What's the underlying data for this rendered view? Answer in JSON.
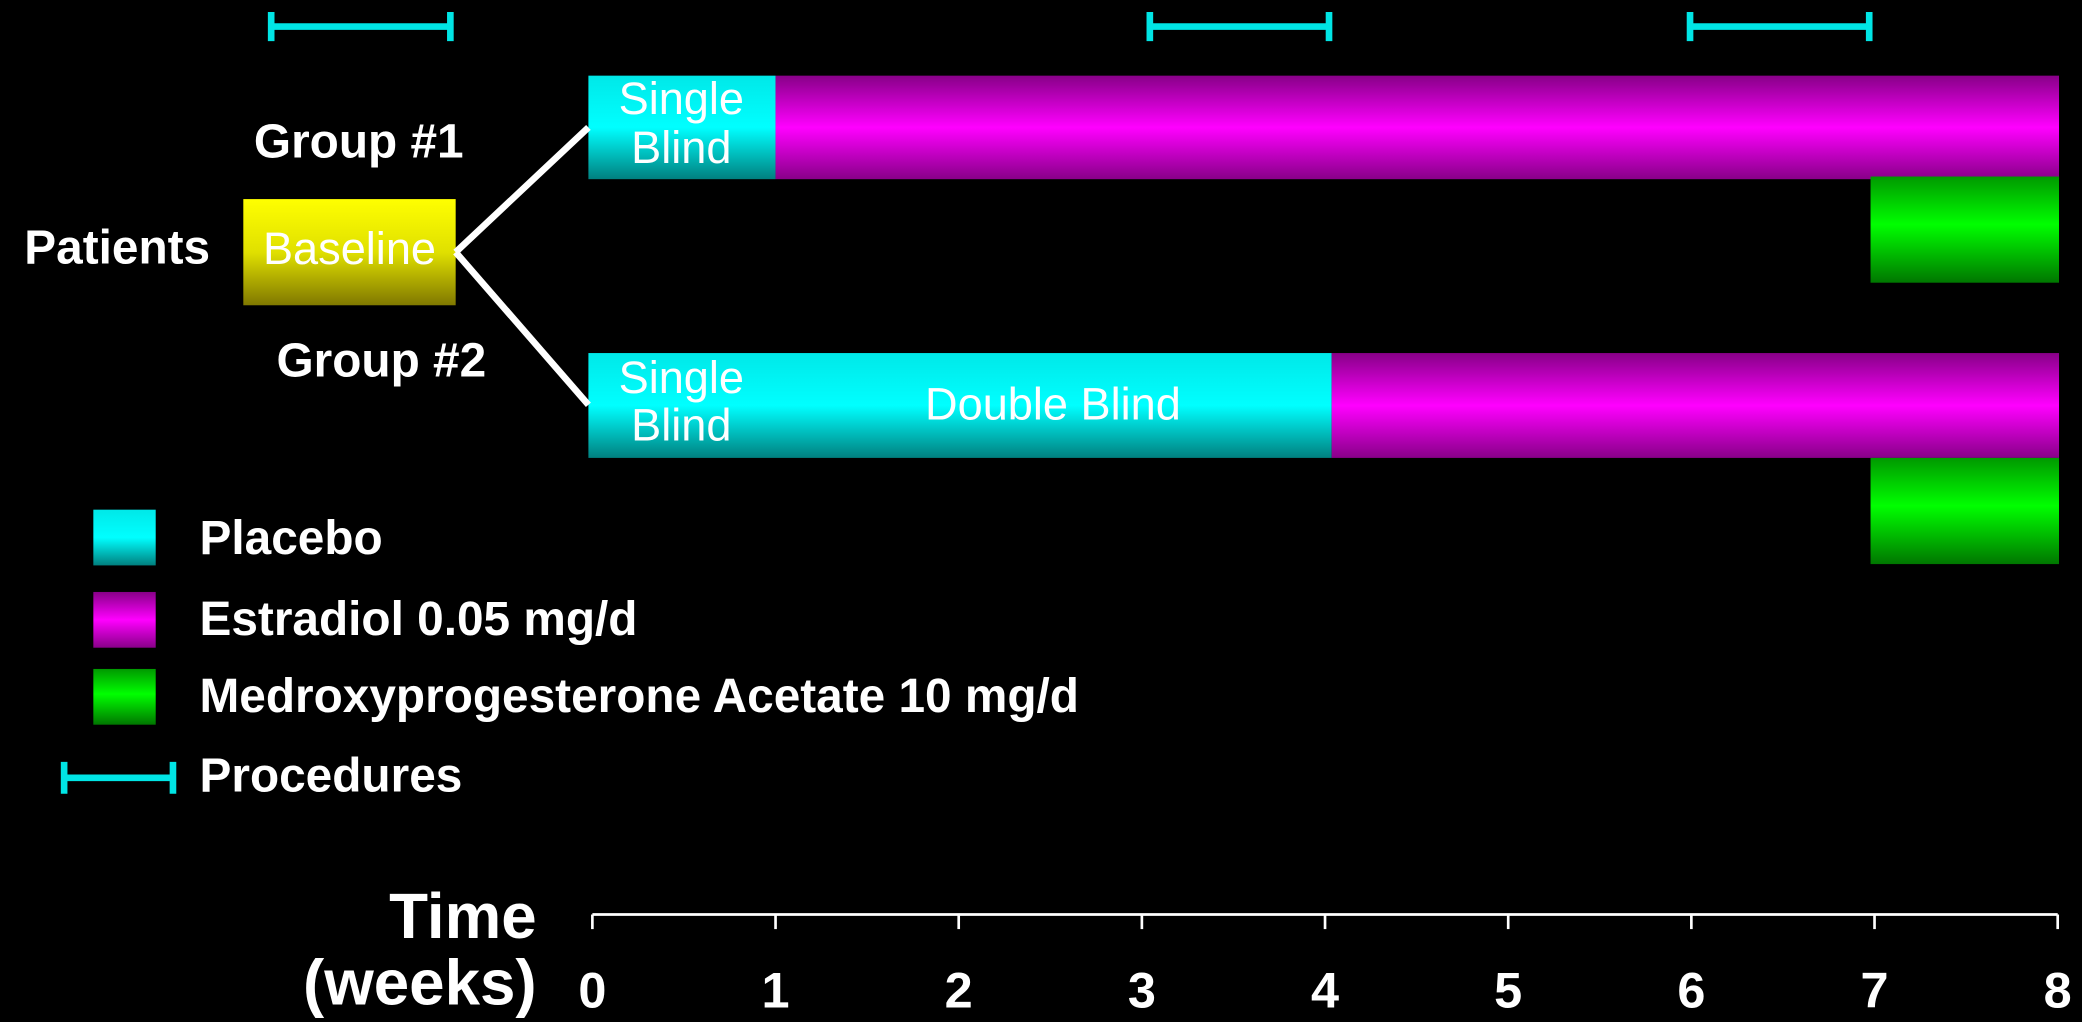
{
  "groups": [
    {
      "label": "Group #1"
    },
    {
      "label": "Group #2"
    }
  ],
  "patients": "Patients",
  "baseline": "Baseline",
  "single_blind": [
    "Single",
    "Blind"
  ],
  "double_blind": "Double Blind",
  "legend": [
    "Placebo",
    "Estradiol 0.05 mg/d",
    "Medroxyprogesterone Acetate 10 mg/d",
    "Procedures"
  ],
  "axis": {
    "title": [
      "Time",
      "(weeks)"
    ],
    "ticks": [
      0,
      1,
      2,
      3,
      4,
      5,
      6,
      7,
      8
    ]
  }
}
